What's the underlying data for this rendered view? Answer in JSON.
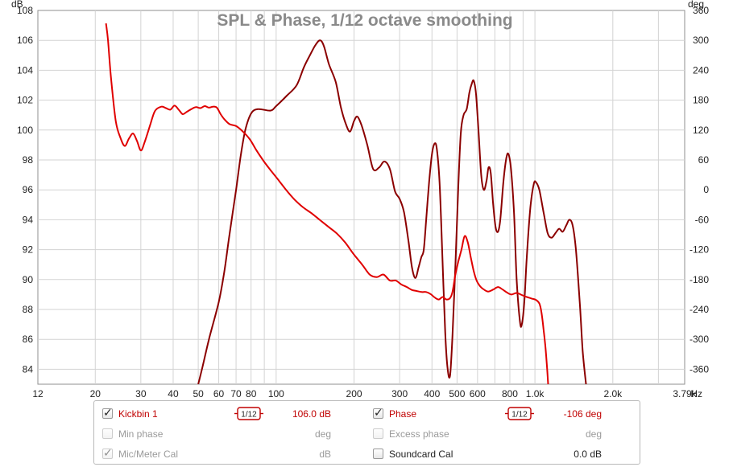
{
  "chart_data": {
    "type": "line",
    "title": "SPL & Phase, 1/12 octave smoothing",
    "x_scale": "log",
    "xlim": [
      12,
      3790
    ],
    "x_ticks": [
      {
        "v": 12,
        "label": "12"
      },
      {
        "v": 20,
        "label": "20"
      },
      {
        "v": 30,
        "label": "30"
      },
      {
        "v": 40,
        "label": "40"
      },
      {
        "v": 50,
        "label": "50"
      },
      {
        "v": 60,
        "label": "60"
      },
      {
        "v": 70,
        "label": "70"
      },
      {
        "v": 80,
        "label": "80"
      },
      {
        "v": 100,
        "label": "100"
      },
      {
        "v": 200,
        "label": "200"
      },
      {
        "v": 300,
        "label": "300"
      },
      {
        "v": 400,
        "label": "400"
      },
      {
        "v": 500,
        "label": "500"
      },
      {
        "v": 600,
        "label": "600"
      },
      {
        "v": 800,
        "label": "800"
      },
      {
        "v": 1000,
        "label": "1.0k"
      },
      {
        "v": 2000,
        "label": "2.0k"
      },
      {
        "v": 3790,
        "label": "3.79k"
      }
    ],
    "x_unit": "Hz",
    "y_left": {
      "unit": "dB",
      "lim": [
        83,
        108
      ],
      "ticks": [
        84,
        86,
        88,
        90,
        92,
        94,
        96,
        98,
        100,
        102,
        104,
        106,
        108
      ]
    },
    "y_right": {
      "unit": "deg",
      "lim": [
        -390,
        360
      ],
      "ticks": [
        -360,
        -300,
        -240,
        -180,
        -120,
        -60,
        0,
        60,
        120,
        180,
        240,
        300,
        360
      ]
    },
    "grid": true,
    "series": [
      {
        "name": "Kickbin 1",
        "axis": "left",
        "color": "#8b0000",
        "points": [
          [
            50,
            83.0
          ],
          [
            52,
            84.2
          ],
          [
            55,
            86.0
          ],
          [
            60,
            88.5
          ],
          [
            63,
            90.5
          ],
          [
            66,
            93.0
          ],
          [
            70,
            96.0
          ],
          [
            73,
            98.3
          ],
          [
            76,
            100.0
          ],
          [
            80,
            101.1
          ],
          [
            85,
            101.4
          ],
          [
            95,
            101.3
          ],
          [
            100,
            101.6
          ],
          [
            110,
            102.3
          ],
          [
            120,
            103.0
          ],
          [
            128,
            104.2
          ],
          [
            135,
            105.0
          ],
          [
            142,
            105.7
          ],
          [
            148,
            106.0
          ],
          [
            153,
            105.6
          ],
          [
            160,
            104.4
          ],
          [
            170,
            103.2
          ],
          [
            178,
            101.5
          ],
          [
            186,
            100.4
          ],
          [
            193,
            99.9
          ],
          [
            200,
            100.6
          ],
          [
            206,
            100.9
          ],
          [
            214,
            100.3
          ],
          [
            225,
            99.0
          ],
          [
            237,
            97.4
          ],
          [
            250,
            97.5
          ],
          [
            262,
            97.9
          ],
          [
            275,
            97.4
          ],
          [
            288,
            95.9
          ],
          [
            300,
            95.4
          ],
          [
            312,
            94.5
          ],
          [
            325,
            92.5
          ],
          [
            335,
            90.8
          ],
          [
            345,
            90.1
          ],
          [
            355,
            90.8
          ],
          [
            364,
            91.5
          ],
          [
            372,
            92.0
          ],
          [
            380,
            94.0
          ],
          [
            390,
            96.5
          ],
          [
            400,
            98.4
          ],
          [
            410,
            99.1
          ],
          [
            418,
            98.7
          ],
          [
            428,
            96.5
          ],
          [
            438,
            92.0
          ],
          [
            450,
            86.5
          ],
          [
            460,
            84.0
          ],
          [
            470,
            83.6
          ],
          [
            480,
            86.2
          ],
          [
            493,
            91.0
          ],
          [
            505,
            96.0
          ],
          [
            517,
            99.8
          ],
          [
            530,
            101.0
          ],
          [
            545,
            101.4
          ],
          [
            558,
            102.5
          ],
          [
            570,
            103.1
          ],
          [
            580,
            103.3
          ],
          [
            592,
            102.4
          ],
          [
            605,
            100.0
          ],
          [
            620,
            97.0
          ],
          [
            635,
            96.0
          ],
          [
            650,
            96.6
          ],
          [
            662,
            97.5
          ],
          [
            675,
            97.1
          ],
          [
            690,
            95.0
          ],
          [
            705,
            93.5
          ],
          [
            720,
            93.2
          ],
          [
            735,
            94.0
          ],
          [
            755,
            96.5
          ],
          [
            775,
            98.1
          ],
          [
            790,
            98.4
          ],
          [
            808,
            97.4
          ],
          [
            830,
            94.5
          ],
          [
            850,
            90.0
          ],
          [
            875,
            87.2
          ],
          [
            890,
            87.0
          ],
          [
            910,
            88.5
          ],
          [
            930,
            91.5
          ],
          [
            960,
            94.8
          ],
          [
            990,
            96.4
          ],
          [
            1010,
            96.5
          ],
          [
            1040,
            96.0
          ],
          [
            1080,
            94.5
          ],
          [
            1120,
            93.1
          ],
          [
            1160,
            92.8
          ],
          [
            1200,
            93.1
          ],
          [
            1240,
            93.4
          ],
          [
            1280,
            93.2
          ],
          [
            1320,
            93.6
          ],
          [
            1360,
            94.0
          ],
          [
            1400,
            93.6
          ],
          [
            1440,
            92.0
          ],
          [
            1490,
            88.5
          ],
          [
            1530,
            85.2
          ],
          [
            1580,
            82.8
          ]
        ]
      },
      {
        "name": "Kickbin 1 phase",
        "axis": "right",
        "color": "#e00000",
        "points": [
          [
            22,
            334
          ],
          [
            22.4,
            300
          ],
          [
            23,
            225
          ],
          [
            24,
            138
          ],
          [
            25,
            105
          ],
          [
            26,
            88
          ],
          [
            27,
            103
          ],
          [
            28,
            113
          ],
          [
            29,
            98
          ],
          [
            30,
            79
          ],
          [
            31,
            95
          ],
          [
            32.5,
            128
          ],
          [
            34,
            158
          ],
          [
            36,
            167
          ],
          [
            37.5,
            164
          ],
          [
            39,
            161
          ],
          [
            40.5,
            169
          ],
          [
            42,
            161
          ],
          [
            43.5,
            152
          ],
          [
            45,
            156
          ],
          [
            47,
            162
          ],
          [
            49,
            166
          ],
          [
            51,
            164
          ],
          [
            53,
            168
          ],
          [
            55,
            165
          ],
          [
            57,
            167
          ],
          [
            59,
            165
          ],
          [
            61,
            152
          ],
          [
            63,
            142
          ],
          [
            66,
            132
          ],
          [
            70,
            128
          ],
          [
            74,
            118
          ],
          [
            79,
            102
          ],
          [
            84,
            79
          ],
          [
            90,
            56
          ],
          [
            96,
            37
          ],
          [
            103,
            17
          ],
          [
            110,
            -2
          ],
          [
            118,
            -20
          ],
          [
            127,
            -35
          ],
          [
            137,
            -47
          ],
          [
            148,
            -61
          ],
          [
            160,
            -75
          ],
          [
            172,
            -88
          ],
          [
            185,
            -106
          ],
          [
            200,
            -130
          ],
          [
            215,
            -150
          ],
          [
            230,
            -170
          ],
          [
            245,
            -175
          ],
          [
            260,
            -170
          ],
          [
            275,
            -182
          ],
          [
            290,
            -182
          ],
          [
            305,
            -190
          ],
          [
            320,
            -195
          ],
          [
            335,
            -201
          ],
          [
            350,
            -203
          ],
          [
            365,
            -205
          ],
          [
            380,
            -205
          ],
          [
            395,
            -209
          ],
          [
            410,
            -216
          ],
          [
            425,
            -220
          ],
          [
            440,
            -215
          ],
          [
            455,
            -220
          ],
          [
            470,
            -217
          ],
          [
            480,
            -205
          ],
          [
            492,
            -172
          ],
          [
            505,
            -145
          ],
          [
            520,
            -120
          ],
          [
            535,
            -93
          ],
          [
            550,
            -105
          ],
          [
            565,
            -135
          ],
          [
            580,
            -163
          ],
          [
            595,
            -182
          ],
          [
            615,
            -194
          ],
          [
            635,
            -200
          ],
          [
            660,
            -204
          ],
          [
            690,
            -200
          ],
          [
            720,
            -195
          ],
          [
            750,
            -200
          ],
          [
            780,
            -206
          ],
          [
            810,
            -210
          ],
          [
            850,
            -207
          ],
          [
            890,
            -211
          ],
          [
            930,
            -215
          ],
          [
            970,
            -218
          ],
          [
            1010,
            -221
          ],
          [
            1040,
            -228
          ],
          [
            1060,
            -246
          ],
          [
            1080,
            -280
          ],
          [
            1100,
            -320
          ],
          [
            1115,
            -360
          ],
          [
            1125,
            -390
          ]
        ]
      }
    ]
  },
  "legend": {
    "row1": {
      "left": {
        "label": "Kickbin 1",
        "checked": true,
        "smoothing": "1/12",
        "value": "106.0 dB"
      },
      "right": {
        "label": "Phase",
        "checked": true,
        "smoothing": "1/12",
        "value": "-106 deg"
      }
    },
    "row2": {
      "left": {
        "label": "Min phase",
        "checked": false,
        "value": "deg"
      },
      "right": {
        "label": "Excess phase",
        "checked": false,
        "value": "deg"
      }
    },
    "row3": {
      "left": {
        "label": "Mic/Meter Cal",
        "checked": true,
        "value": "dB"
      },
      "right": {
        "label": "Soundcard Cal",
        "checked": false,
        "value": "0.0 dB"
      }
    }
  },
  "colors": {
    "spl": "#8b0000",
    "phase": "#e00000",
    "grid": "#d3d3d3"
  }
}
